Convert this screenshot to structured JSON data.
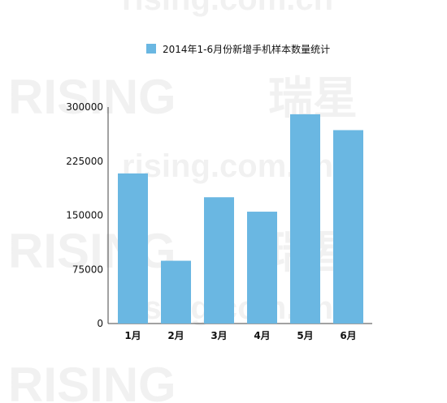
{
  "watermark": {
    "url_text": "rising.com.cn",
    "brand_text": "RISING",
    "brand_cn": "瑞星"
  },
  "chart_data": {
    "type": "bar",
    "title": "",
    "xlabel": "",
    "ylabel": "",
    "categories": [
      "1月",
      "2月",
      "3月",
      "4月",
      "5月",
      "6月"
    ],
    "series": [
      {
        "name": "2014年1-6月份新增手机样本数量统计",
        "values": [
          208000,
          87000,
          175000,
          155000,
          290000,
          268000
        ],
        "color": "#6ab7e2"
      }
    ],
    "ylim": [
      0,
      300000
    ],
    "yticks": [
      "300000",
      "225000",
      "150000",
      "75000",
      "0"
    ],
    "grid": false,
    "legend_position": "top-center"
  }
}
